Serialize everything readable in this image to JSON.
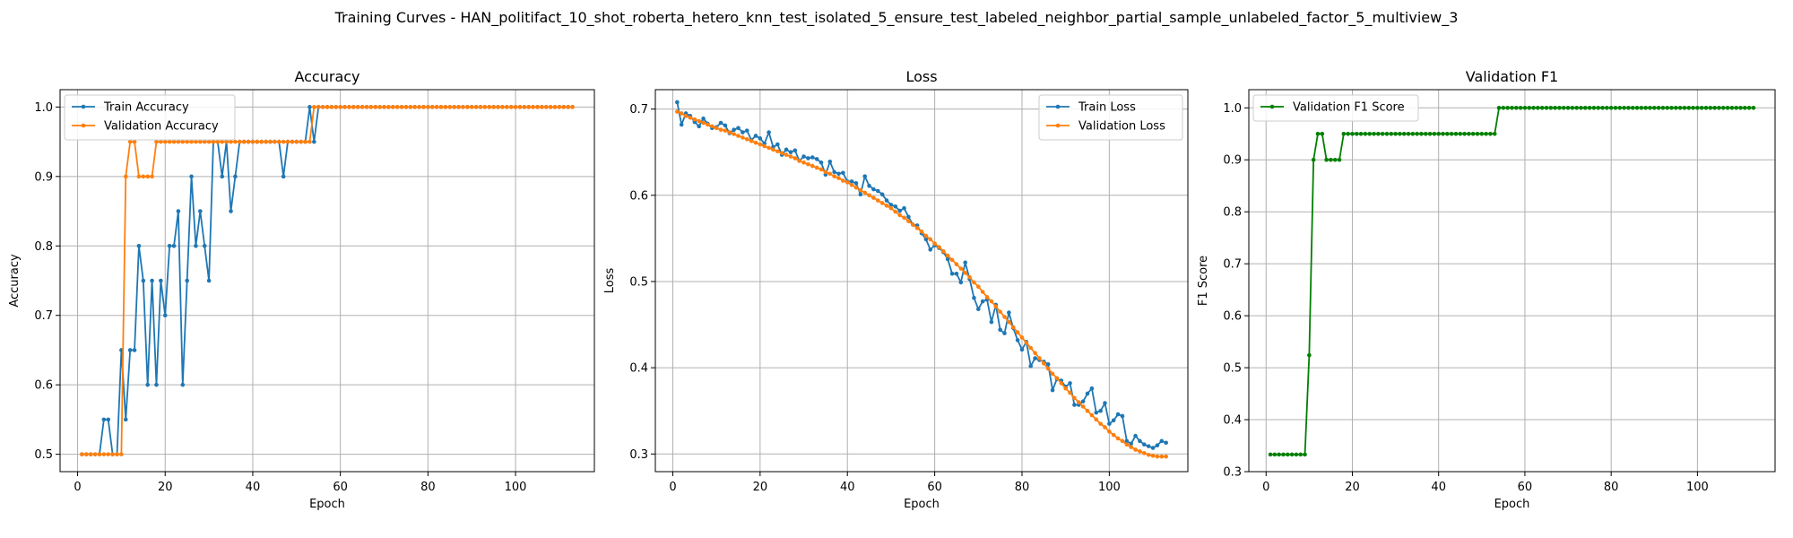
{
  "figure_title": "Training Curves - HAN_politifact_10_shot_roberta_hetero_knn_test_isolated_5_ensure_test_labeled_neighbor_partial_sample_unlabeled_factor_5_multiview_3",
  "colors": {
    "train": "#1f77b4",
    "val": "#ff7f0e",
    "f1": "#008000",
    "grid": "#b0b0b0"
  },
  "chart_data": [
    {
      "type": "line",
      "title": "Accuracy",
      "xlabel": "Epoch",
      "ylabel": "Accuracy",
      "xlim": [
        -4,
        118
      ],
      "ylim": [
        0.475,
        1.025
      ],
      "xticks": [
        0,
        20,
        40,
        60,
        80,
        100
      ],
      "yticks": [
        0.5,
        0.6,
        0.7,
        0.8,
        0.9,
        1.0
      ],
      "ytick_labels": [
        "0.5",
        "0.6",
        "0.7",
        "0.8",
        "0.9",
        "1.0"
      ],
      "grid": true,
      "legend": "upper left",
      "series": [
        {
          "name": "Train Accuracy",
          "color": "#1f77b4",
          "start_epoch": 1,
          "values": [
            0.5,
            0.5,
            0.5,
            0.5,
            0.5,
            0.55,
            0.55,
            0.5,
            0.5,
            0.65,
            0.55,
            0.65,
            0.65,
            0.8,
            0.75,
            0.6,
            0.75,
            0.6,
            0.75,
            0.7,
            0.8,
            0.8,
            0.85,
            0.6,
            0.75,
            0.9,
            0.8,
            0.85,
            0.8,
            0.75,
            0.95,
            0.95,
            0.9,
            0.95,
            0.85,
            0.9,
            0.95,
            0.95,
            0.95,
            0.95,
            0.95,
            0.95,
            0.95,
            0.95,
            0.95,
            0.95,
            0.9,
            0.95,
            0.95,
            0.95,
            0.95,
            0.95,
            1.0,
            0.95,
            1.0,
            1.0,
            1.0,
            1.0,
            1.0,
            1.0,
            1.0,
            1.0,
            1.0,
            1.0,
            1.0,
            1.0,
            1.0,
            1.0,
            1.0,
            1.0,
            1.0,
            1.0,
            1.0,
            1.0,
            1.0,
            1.0,
            1.0,
            1.0,
            1.0,
            1.0,
            1.0,
            1.0,
            1.0,
            1.0,
            1.0,
            1.0,
            1.0,
            1.0,
            1.0,
            1.0,
            1.0,
            1.0,
            1.0,
            1.0,
            1.0,
            1.0,
            1.0,
            1.0,
            1.0,
            1.0,
            1.0,
            1.0,
            1.0,
            1.0,
            1.0,
            1.0,
            1.0,
            1.0,
            1.0,
            1.0,
            1.0,
            1.0,
            1.0
          ]
        },
        {
          "name": "Validation Accuracy",
          "color": "#ff7f0e",
          "start_epoch": 1,
          "values": [
            0.5,
            0.5,
            0.5,
            0.5,
            0.5,
            0.5,
            0.5,
            0.5,
            0.5,
            0.5,
            0.9,
            0.95,
            0.95,
            0.9,
            0.9,
            0.9,
            0.9,
            0.95,
            0.95,
            0.95,
            0.95,
            0.95,
            0.95,
            0.95,
            0.95,
            0.95,
            0.95,
            0.95,
            0.95,
            0.95,
            0.95,
            0.95,
            0.95,
            0.95,
            0.95,
            0.95,
            0.95,
            0.95,
            0.95,
            0.95,
            0.95,
            0.95,
            0.95,
            0.95,
            0.95,
            0.95,
            0.95,
            0.95,
            0.95,
            0.95,
            0.95,
            0.95,
            0.95,
            1.0,
            1.0,
            1.0,
            1.0,
            1.0,
            1.0,
            1.0,
            1.0,
            1.0,
            1.0,
            1.0,
            1.0,
            1.0,
            1.0,
            1.0,
            1.0,
            1.0,
            1.0,
            1.0,
            1.0,
            1.0,
            1.0,
            1.0,
            1.0,
            1.0,
            1.0,
            1.0,
            1.0,
            1.0,
            1.0,
            1.0,
            1.0,
            1.0,
            1.0,
            1.0,
            1.0,
            1.0,
            1.0,
            1.0,
            1.0,
            1.0,
            1.0,
            1.0,
            1.0,
            1.0,
            1.0,
            1.0,
            1.0,
            1.0,
            1.0,
            1.0,
            1.0,
            1.0,
            1.0,
            1.0,
            1.0,
            1.0,
            1.0,
            1.0,
            1.0
          ]
        }
      ]
    },
    {
      "type": "line",
      "title": "Loss",
      "xlabel": "Epoch",
      "ylabel": "Loss",
      "xlim": [
        -4,
        118
      ],
      "ylim": [
        0.2795,
        0.7225
      ],
      "xticks": [
        0,
        20,
        40,
        60,
        80,
        100
      ],
      "yticks": [
        0.3,
        0.4,
        0.5,
        0.6,
        0.7
      ],
      "ytick_labels": [
        "0.3",
        "0.4",
        "0.5",
        "0.6",
        "0.7"
      ],
      "grid": true,
      "legend": "upper right",
      "series": [
        {
          "name": "Train Loss",
          "color": "#1f77b4",
          "start_epoch": 1,
          "values": [
            0.708,
            0.682,
            0.695,
            0.692,
            0.685,
            0.68,
            0.689,
            0.683,
            0.678,
            0.679,
            0.684,
            0.681,
            0.672,
            0.676,
            0.678,
            0.673,
            0.675,
            0.664,
            0.669,
            0.666,
            0.66,
            0.673,
            0.656,
            0.659,
            0.647,
            0.653,
            0.65,
            0.652,
            0.64,
            0.645,
            0.643,
            0.644,
            0.642,
            0.638,
            0.624,
            0.639,
            0.627,
            0.625,
            0.626,
            0.616,
            0.616,
            0.614,
            0.601,
            0.622,
            0.611,
            0.607,
            0.605,
            0.601,
            0.594,
            0.589,
            0.587,
            0.582,
            0.585,
            0.575,
            0.566,
            0.565,
            0.556,
            0.549,
            0.537,
            0.542,
            0.539,
            0.534,
            0.526,
            0.509,
            0.509,
            0.499,
            0.522,
            0.503,
            0.481,
            0.468,
            0.477,
            0.479,
            0.453,
            0.473,
            0.444,
            0.44,
            0.464,
            0.446,
            0.432,
            0.421,
            0.43,
            0.402,
            0.411,
            0.409,
            0.407,
            0.404,
            0.374,
            0.387,
            0.385,
            0.378,
            0.382,
            0.357,
            0.357,
            0.361,
            0.37,
            0.376,
            0.348,
            0.35,
            0.359,
            0.335,
            0.339,
            0.346,
            0.344,
            0.315,
            0.312,
            0.321,
            0.315,
            0.311,
            0.309,
            0.307,
            0.31,
            0.315,
            0.313
          ]
        },
        {
          "name": "Validation Loss",
          "color": "#ff7f0e",
          "start_epoch": 1,
          "values": [
            0.697,
            0.695,
            0.692,
            0.69,
            0.688,
            0.686,
            0.684,
            0.682,
            0.68,
            0.678,
            0.676,
            0.675,
            0.673,
            0.671,
            0.669,
            0.667,
            0.665,
            0.663,
            0.661,
            0.659,
            0.657,
            0.655,
            0.653,
            0.651,
            0.649,
            0.647,
            0.645,
            0.643,
            0.64,
            0.638,
            0.636,
            0.634,
            0.632,
            0.63,
            0.627,
            0.625,
            0.622,
            0.62,
            0.617,
            0.615,
            0.612,
            0.609,
            0.606,
            0.603,
            0.6,
            0.597,
            0.594,
            0.591,
            0.588,
            0.585,
            0.581,
            0.577,
            0.574,
            0.57,
            0.566,
            0.562,
            0.558,
            0.553,
            0.549,
            0.544,
            0.54,
            0.535,
            0.53,
            0.525,
            0.52,
            0.515,
            0.51,
            0.505,
            0.499,
            0.494,
            0.488,
            0.482,
            0.477,
            0.471,
            0.465,
            0.459,
            0.453,
            0.447,
            0.441,
            0.435,
            0.429,
            0.423,
            0.417,
            0.411,
            0.405,
            0.399,
            0.393,
            0.388,
            0.382,
            0.376,
            0.371,
            0.365,
            0.36,
            0.355,
            0.35,
            0.345,
            0.34,
            0.335,
            0.331,
            0.326,
            0.322,
            0.318,
            0.315,
            0.311,
            0.308,
            0.305,
            0.303,
            0.301,
            0.299,
            0.298,
            0.297,
            0.297,
            0.297
          ]
        }
      ]
    },
    {
      "type": "line",
      "title": "Validation F1",
      "xlabel": "Epoch",
      "ylabel": "F1 Score",
      "xlim": [
        -4,
        118
      ],
      "ylim": [
        0.3,
        1.035
      ],
      "xticks": [
        0,
        20,
        40,
        60,
        80,
        100
      ],
      "yticks": [
        0.3,
        0.4,
        0.5,
        0.6,
        0.7,
        0.8,
        0.9,
        1.0
      ],
      "ytick_labels": [
        "0.3",
        "0.4",
        "0.5",
        "0.6",
        "0.7",
        "0.8",
        "0.9",
        "1.0"
      ],
      "grid": true,
      "legend": "upper left",
      "series": [
        {
          "name": "Validation F1 Score",
          "color": "#008000",
          "start_epoch": 1,
          "values": [
            0.333,
            0.333,
            0.333,
            0.333,
            0.333,
            0.333,
            0.333,
            0.333,
            0.333,
            0.524,
            0.9,
            0.95,
            0.95,
            0.9,
            0.9,
            0.9,
            0.9,
            0.95,
            0.95,
            0.95,
            0.95,
            0.95,
            0.95,
            0.95,
            0.95,
            0.95,
            0.95,
            0.95,
            0.95,
            0.95,
            0.95,
            0.95,
            0.95,
            0.95,
            0.95,
            0.95,
            0.95,
            0.95,
            0.95,
            0.95,
            0.95,
            0.95,
            0.95,
            0.95,
            0.95,
            0.95,
            0.95,
            0.95,
            0.95,
            0.95,
            0.95,
            0.95,
            0.95,
            1.0,
            1.0,
            1.0,
            1.0,
            1.0,
            1.0,
            1.0,
            1.0,
            1.0,
            1.0,
            1.0,
            1.0,
            1.0,
            1.0,
            1.0,
            1.0,
            1.0,
            1.0,
            1.0,
            1.0,
            1.0,
            1.0,
            1.0,
            1.0,
            1.0,
            1.0,
            1.0,
            1.0,
            1.0,
            1.0,
            1.0,
            1.0,
            1.0,
            1.0,
            1.0,
            1.0,
            1.0,
            1.0,
            1.0,
            1.0,
            1.0,
            1.0,
            1.0,
            1.0,
            1.0,
            1.0,
            1.0,
            1.0,
            1.0,
            1.0,
            1.0,
            1.0,
            1.0,
            1.0,
            1.0,
            1.0,
            1.0,
            1.0,
            1.0,
            1.0
          ]
        }
      ]
    }
  ]
}
